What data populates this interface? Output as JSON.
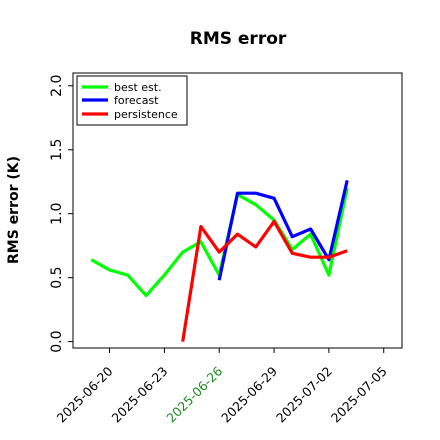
{
  "chart_data": {
    "type": "line",
    "title": "RMS error",
    "xlabel": "",
    "ylabel": "RMS error (K)",
    "ylim": [
      -0.05,
      2.1
    ],
    "xlim": [
      "2025-06-18",
      "2025-07-06"
    ],
    "yticks": [
      "0.0",
      "0.5",
      "1.0",
      "1.5",
      "2.0"
    ],
    "xticks": [
      {
        "label": "2025-06-20",
        "date": "2025-06-20",
        "color": "#000000"
      },
      {
        "label": "2025-06-23",
        "date": "2025-06-23",
        "color": "#000000"
      },
      {
        "label": "2025-06-26",
        "date": "2025-06-26",
        "color": "#228B22"
      },
      {
        "label": "2025-06-29",
        "date": "2025-06-29",
        "color": "#000000"
      },
      {
        "label": "2025-07-02",
        "date": "2025-07-02",
        "color": "#000000"
      },
      {
        "label": "2025-07-05",
        "date": "2025-07-05",
        "color": "#000000"
      }
    ],
    "grid": false,
    "legend_position": "top-left",
    "series": [
      {
        "name": "best est.",
        "color": "#00ff00",
        "points": [
          [
            "2025-06-19",
            0.64
          ],
          [
            "2025-06-20",
            0.56
          ],
          [
            "2025-06-21",
            0.52
          ],
          [
            "2025-06-22",
            0.36
          ],
          [
            "2025-06-23",
            0.52
          ],
          [
            "2025-06-24",
            0.7
          ],
          [
            "2025-06-25",
            0.78
          ],
          [
            "2025-06-26",
            0.52
          ],
          [
            "2025-06-27",
            1.15
          ],
          [
            "2025-06-28",
            1.07
          ],
          [
            "2025-06-29",
            0.95
          ],
          [
            "2025-06-30",
            0.72
          ],
          [
            "2025-07-01",
            0.84
          ],
          [
            "2025-07-02",
            0.52
          ],
          [
            "2025-07-03",
            1.2
          ]
        ]
      },
      {
        "name": "forecast",
        "color": "#0000ff",
        "points": [
          [
            "2025-06-26",
            0.48
          ],
          [
            "2025-06-27",
            1.16
          ],
          [
            "2025-06-28",
            1.16
          ],
          [
            "2025-06-29",
            1.12
          ],
          [
            "2025-06-30",
            0.82
          ],
          [
            "2025-07-01",
            0.88
          ],
          [
            "2025-07-02",
            0.64
          ],
          [
            "2025-07-03",
            1.26
          ]
        ]
      },
      {
        "name": "persistence",
        "color": "#ff0000",
        "points": [
          [
            "2025-06-24",
            0.0
          ],
          [
            "2025-06-25",
            0.9
          ],
          [
            "2025-06-26",
            0.7
          ],
          [
            "2025-06-27",
            0.84
          ],
          [
            "2025-06-28",
            0.74
          ],
          [
            "2025-06-29",
            0.94
          ],
          [
            "2025-06-30",
            0.69
          ],
          [
            "2025-07-01",
            0.66
          ],
          [
            "2025-07-02",
            0.66
          ],
          [
            "2025-07-03",
            0.71
          ]
        ]
      }
    ]
  }
}
